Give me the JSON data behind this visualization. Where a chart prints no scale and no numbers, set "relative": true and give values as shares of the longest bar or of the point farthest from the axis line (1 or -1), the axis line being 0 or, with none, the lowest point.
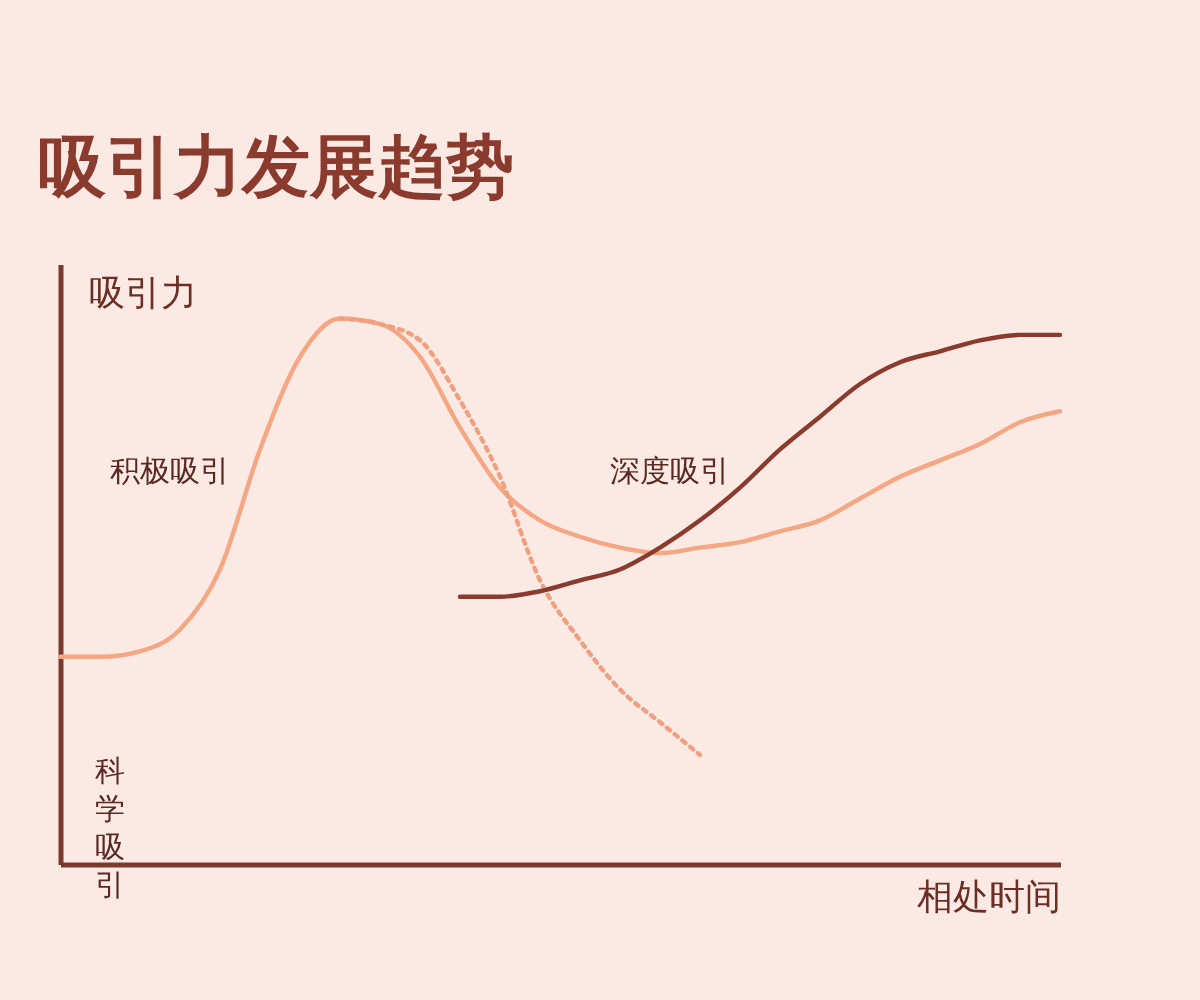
{
  "chart_data": {
    "type": "line",
    "title": "吸引力发展趋势",
    "xlabel": "相处时间",
    "ylabel": "吸引力",
    "relative": true,
    "legend": false,
    "grid": false,
    "categories": [
      null,
      null,
      null,
      null,
      null,
      null,
      null,
      null,
      null,
      null,
      null,
      null,
      null,
      null,
      null,
      null,
      null,
      null,
      null,
      null,
      null,
      null,
      null,
      null,
      null,
      null
    ],
    "annotations": [
      "积极吸引",
      "深度吸引",
      "科学吸引"
    ],
    "series": [
      {
        "color": "#f5a682",
        "line_style": "solid",
        "values": [
          0.38,
          0.38,
          0.39,
          0.43,
          0.54,
          0.76,
          0.93,
          1.0,
          0.99,
          0.93,
          0.8,
          0.69,
          0.63,
          0.6,
          0.58,
          0.57,
          0.58,
          0.59,
          0.61,
          0.63,
          0.67,
          0.71,
          0.74,
          0.77,
          0.81,
          0.83
        ]
      },
      {
        "color": "#f0a080",
        "line_style": "dotted",
        "values": [
          null,
          null,
          null,
          null,
          null,
          null,
          null,
          1.0,
          0.99,
          0.96,
          0.85,
          0.71,
          0.52,
          0.41,
          0.32,
          0.26,
          0.2,
          null,
          null,
          null,
          null,
          null,
          null,
          null,
          null,
          null
        ]
      },
      {
        "color": "#8b3a2e",
        "line_style": "solid",
        "values": [
          null,
          null,
          null,
          null,
          null,
          null,
          null,
          null,
          null,
          null,
          0.49,
          0.49,
          0.5,
          0.52,
          0.54,
          0.58,
          0.63,
          0.69,
          0.76,
          0.82,
          0.88,
          0.92,
          0.94,
          0.96,
          0.97,
          0.97
        ]
      }
    ]
  }
}
